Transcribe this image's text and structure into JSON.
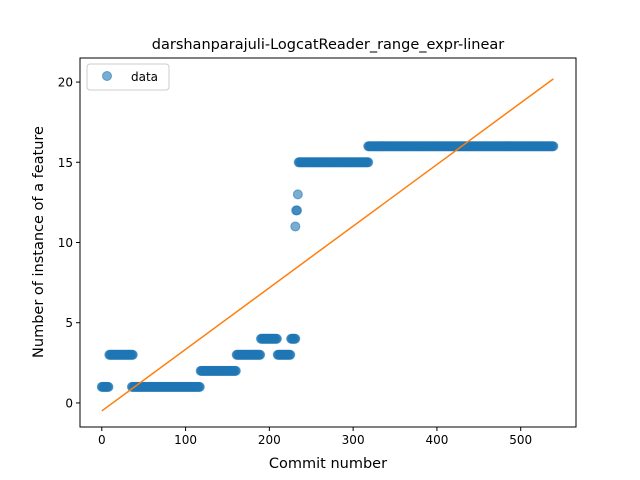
{
  "chart_data": {
    "type": "scatter",
    "title": "darshanparajuli-LogcatReader_range_expr-linear",
    "xlabel": "Commit number",
    "ylabel": "Number of instance of a feature",
    "xlim": [
      -26,
      566
    ],
    "ylim": [
      -1.5,
      21.5
    ],
    "x_ticks": [
      0,
      100,
      200,
      300,
      400,
      500
    ],
    "y_ticks": [
      0,
      5,
      10,
      15,
      20
    ],
    "grid": false,
    "legend": {
      "placement": "top-left",
      "entries": [
        "data"
      ]
    },
    "series": [
      {
        "name": "data",
        "kind": "scatter",
        "color": "#1f77b4",
        "segments": [
          {
            "x_start": 0,
            "x_end": 8,
            "y": 1
          },
          {
            "x_start": 9,
            "x_end": 37,
            "y": 3
          },
          {
            "x_start": 36,
            "x_end": 117,
            "y": 1
          },
          {
            "x_start": 118,
            "x_end": 160,
            "y": 2
          },
          {
            "x_start": 161,
            "x_end": 189,
            "y": 3
          },
          {
            "x_start": 190,
            "x_end": 209,
            "y": 4
          },
          {
            "x_start": 210,
            "x_end": 225,
            "y": 3
          },
          {
            "x_start": 226,
            "x_end": 231,
            "y": 4
          }
        ],
        "points": [
          {
            "x": 231,
            "y": 11
          },
          {
            "x": 232,
            "y": 12
          },
          {
            "x": 233,
            "y": 12
          },
          {
            "x": 234,
            "y": 13
          }
        ],
        "segments_upper": [
          {
            "x_start": 235,
            "x_end": 318,
            "y": 15
          },
          {
            "x_start": 318,
            "x_end": 539,
            "y": 16
          }
        ]
      },
      {
        "name": "",
        "kind": "line",
        "color": "#ff7f0e",
        "x": [
          0,
          539
        ],
        "y": [
          -0.5,
          20.2
        ]
      }
    ]
  }
}
